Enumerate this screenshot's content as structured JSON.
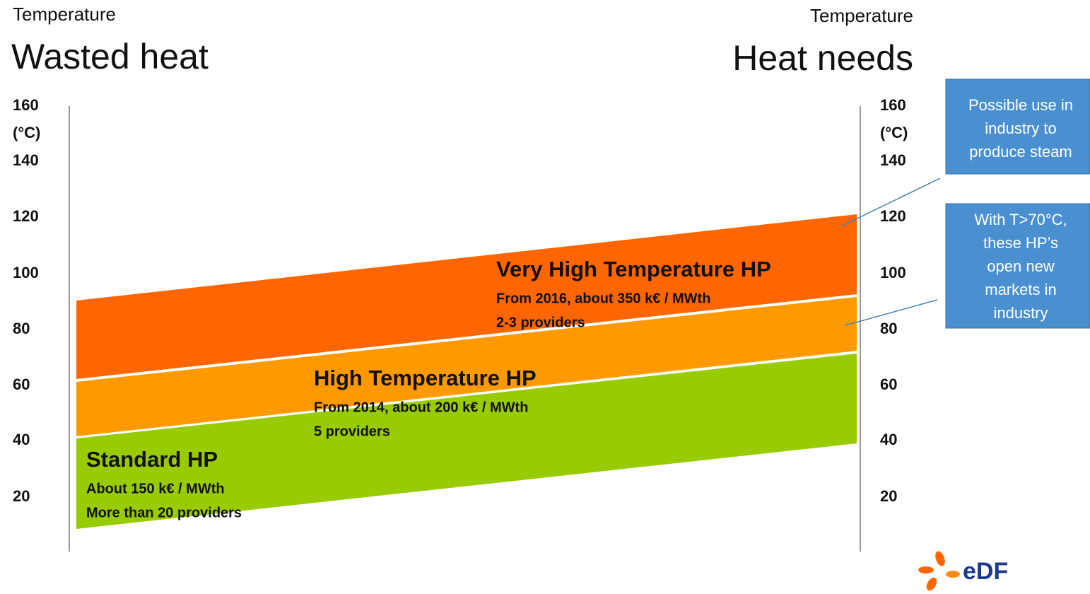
{
  "left_header": {
    "label": "Temperature",
    "title": "Wasted heat"
  },
  "right_header": {
    "label": "Temperature",
    "title": "Heat needs"
  },
  "left_axis": {
    "unit": "(°C)",
    "ticks": [
      160,
      140,
      120,
      100,
      80,
      60,
      40,
      20
    ]
  },
  "right_axis": {
    "unit": "(°C)",
    "ticks": [
      160,
      140,
      120,
      100,
      80,
      60,
      40,
      20
    ]
  },
  "bands": [
    {
      "title": "Standard HP",
      "lines": [
        "About 150 k€ / MWth",
        "More than 20 providers"
      ]
    },
    {
      "title": "High Temperature HP",
      "lines": [
        "From 2014, about 200 k€ / MWth",
        "5 providers"
      ]
    },
    {
      "title": "Very High Temperature HP",
      "lines": [
        "From 2016, about 350 k€ / MWth",
        "2-3 providers"
      ]
    }
  ],
  "callouts": [
    {
      "lines": [
        "Possible use in",
        "industry to",
        "produce  steam"
      ]
    },
    {
      "lines": [
        "With T>70°C,",
        "these HP’s",
        "open new",
        "markets in",
        "industry"
      ]
    }
  ],
  "logo": {
    "text": "eDF"
  }
}
